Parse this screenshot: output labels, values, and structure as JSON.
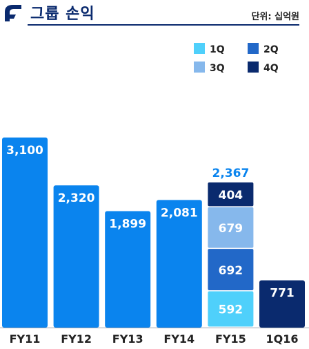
{
  "header": {
    "title": "그룹 손익",
    "unit": "단위: 십억원"
  },
  "colors": {
    "brand": "#0a2a6e",
    "bar": "#0a84ee",
    "q1": "#4fd0fb",
    "q2": "#2268c8",
    "q3": "#86b8ec",
    "q4": "#0a2a6e",
    "total_label": "#0a84ee"
  },
  "chart_data": {
    "type": "bar",
    "categories": [
      "FY11",
      "FY12",
      "FY13",
      "FY14",
      "FY15",
      "1Q16"
    ],
    "values": [
      3100,
      2320,
      1899,
      2081,
      2367,
      771
    ],
    "value_labels": [
      "3,100",
      "2,320",
      "1,899",
      "2,081",
      "2,367",
      "771"
    ],
    "stacked_category": "FY15",
    "stack_total_label": "2,367",
    "series": [
      {
        "name": "1Q",
        "FY15": 592,
        "label": "592"
      },
      {
        "name": "2Q",
        "FY15": 692,
        "label": "692"
      },
      {
        "name": "3Q",
        "FY15": 679,
        "label": "679"
      },
      {
        "name": "4Q",
        "FY15": 404,
        "label": "404"
      }
    ],
    "legend": [
      "1Q",
      "2Q",
      "3Q",
      "4Q"
    ],
    "legend_position": "top-right",
    "ylim": [
      0,
      3100
    ],
    "grid": false
  }
}
